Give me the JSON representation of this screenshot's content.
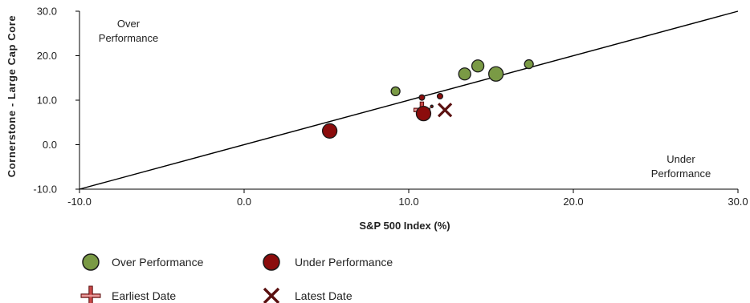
{
  "chart_data": {
    "type": "scatter",
    "title": "",
    "xlabel": "S&P 500 Index (%)",
    "ylabel": "Cornerstone - Large Cap Core",
    "xlim": [
      -10,
      30
    ],
    "ylim": [
      -10,
      30
    ],
    "x_ticks": [
      "-10.0",
      "0.0",
      "10.0",
      "20.0",
      "30.0"
    ],
    "y_ticks": [
      "-10.0",
      "0.0",
      "10.0",
      "20.0",
      "30.0"
    ],
    "reference_line": {
      "from": [
        -10,
        -10
      ],
      "to": [
        30,
        30
      ]
    },
    "annotations": [
      {
        "lines": [
          "Over",
          "Performance"
        ],
        "position": "top-left"
      },
      {
        "lines": [
          "Under",
          "Performance"
        ],
        "position": "bottom-right"
      }
    ],
    "series": [
      {
        "name": "Over Performance",
        "color": "#7a9a45",
        "marker": "circle",
        "points": [
          {
            "x": 9.2,
            "y": 12.0,
            "size": "small"
          },
          {
            "x": 13.4,
            "y": 15.9,
            "size": "medium"
          },
          {
            "x": 14.2,
            "y": 17.7,
            "size": "medium"
          },
          {
            "x": 15.3,
            "y": 15.9,
            "size": "large"
          },
          {
            "x": 17.3,
            "y": 18.1,
            "size": "small"
          }
        ]
      },
      {
        "name": "Under Performance",
        "color": "#8b0c0c",
        "marker": "circle",
        "points": [
          {
            "x": 5.2,
            "y": 3.1,
            "size": "large"
          },
          {
            "x": 10.8,
            "y": 10.6,
            "size": "tiny"
          },
          {
            "x": 11.9,
            "y": 10.9,
            "size": "tiny"
          },
          {
            "x": 11.4,
            "y": 8.6,
            "size": "dot"
          },
          {
            "x": 10.9,
            "y": 7.0,
            "size": "large"
          }
        ]
      }
    ],
    "earliest_date": {
      "x": 10.8,
      "y": 7.8
    },
    "latest_date": {
      "x": 12.2,
      "y": 7.8
    },
    "legend": {
      "position": "bottom",
      "items": [
        {
          "label": "Over Performance",
          "marker": "circle",
          "color": "#7a9a45"
        },
        {
          "label": "Under Performance",
          "marker": "circle",
          "color": "#8b0c0c"
        },
        {
          "label": "Earliest Date",
          "marker": "plus",
          "color": "#b03030"
        },
        {
          "label": "Latest Date",
          "marker": "x",
          "color": "#5a1010"
        }
      ]
    }
  }
}
